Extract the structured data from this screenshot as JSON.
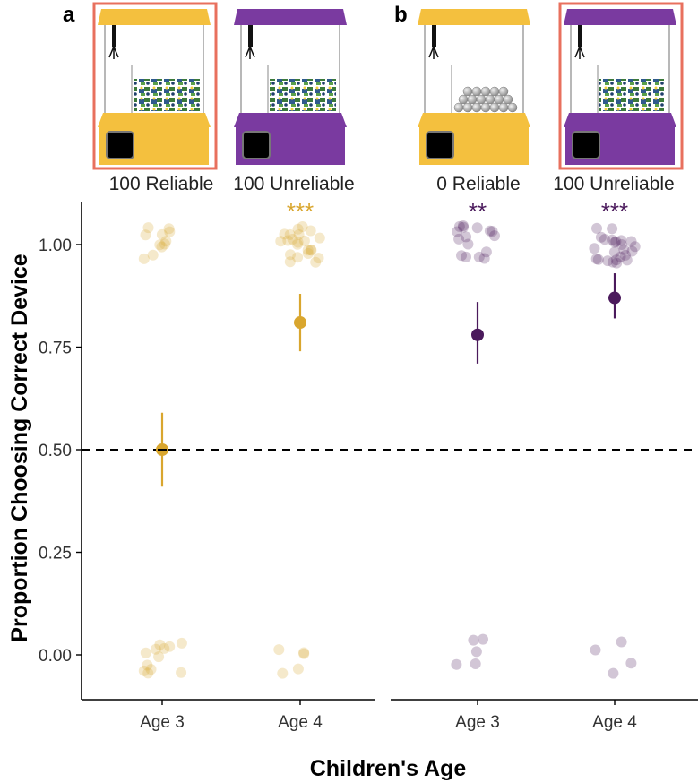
{
  "colors": {
    "reliable": "#d9a62e",
    "reliable_machine": "#f4c03e",
    "unreliable": "#4b1a5c",
    "unreliable_machine": "#7a3aa0",
    "highlight": "#e8705e",
    "dashed": "#000000"
  },
  "panels": [
    {
      "letter": "a",
      "machines": [
        {
          "label": "100 Reliable",
          "color_key": "reliable_machine",
          "contents": "toys",
          "highlighted": true
        },
        {
          "label": "100 Unreliable",
          "color_key": "unreliable_machine",
          "contents": "toys",
          "highlighted": false
        }
      ]
    },
    {
      "letter": "b",
      "machines": [
        {
          "label": "0 Reliable",
          "color_key": "reliable_machine",
          "contents": "balls",
          "highlighted": false
        },
        {
          "label": "100 Unreliable",
          "color_key": "unreliable_machine",
          "contents": "toys",
          "highlighted": true
        }
      ]
    }
  ],
  "chart_data": {
    "type": "scatter",
    "title": "",
    "xlabel": "Children's Age",
    "ylabel": "Proportion Choosing Correct Device",
    "ylim": [
      -0.1,
      1.1
    ],
    "yticks": [
      "0.00",
      "0.25",
      "0.50",
      "0.75",
      "1.00"
    ],
    "ytick_values": [
      0,
      0.25,
      0.5,
      0.75,
      1.0
    ],
    "reference_line": 0.5,
    "categories": [
      "Age 3",
      "Age 4"
    ],
    "facets": [
      {
        "panel": "a",
        "color_key": "reliable",
        "groups": [
          {
            "category": "Age 3",
            "mean": 0.5,
            "ci": [
              0.41,
              0.59
            ],
            "significance": "",
            "points_at_1": 11,
            "points_at_0": 12
          },
          {
            "category": "Age 4",
            "mean": 0.81,
            "ci": [
              0.74,
              0.88
            ],
            "significance": "***",
            "points_at_1": 22,
            "points_at_0": 5
          }
        ]
      },
      {
        "panel": "b",
        "color_key": "unreliable",
        "groups": [
          {
            "category": "Age 3",
            "mean": 0.78,
            "ci": [
              0.71,
              0.86
            ],
            "significance": "**",
            "points_at_1": 16,
            "points_at_0": 5
          },
          {
            "category": "Age 4",
            "mean": 0.87,
            "ci": [
              0.82,
              0.93
            ],
            "significance": "***",
            "points_at_1": 24,
            "points_at_0": 4
          }
        ]
      }
    ]
  }
}
